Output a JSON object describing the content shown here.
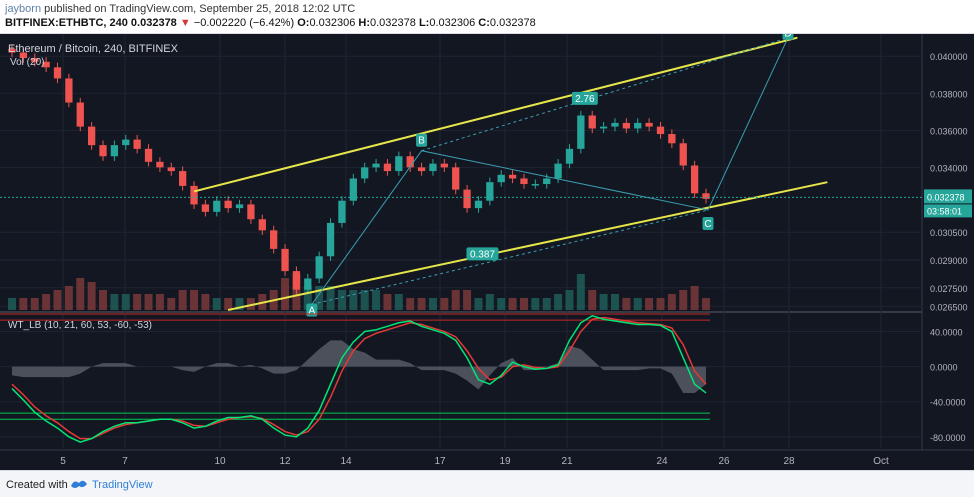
{
  "header": {
    "author": "jayborn",
    "published_text": "published on TradingView.com, September 25, 2018 12:02 UTC",
    "symbol_line": "BITFINEX:ETHBTC, 240",
    "last": "0.032378",
    "arrow": "▼",
    "change": "−0.002220 (−6.42%)",
    "ohlc": {
      "o_label": "O:",
      "o": "0.032306",
      "h_label": "H:",
      "h": "0.032378",
      "l_label": "L:",
      "l": "0.032306",
      "c_label": "C:",
      "c": "0.032378"
    }
  },
  "footer": {
    "created_with": "Created with",
    "brand": "TradingView"
  },
  "chart_data": [
    {
      "type": "candlestick",
      "title": "Ethereum / Bitcoin, 240, BITFINEX",
      "volume_label": "Vol (20)",
      "x_ticks": [
        "5",
        "7",
        "10",
        "12",
        "14",
        "17",
        "19",
        "21",
        "24",
        "26",
        "28",
        "Oct"
      ],
      "y_ticks": [
        "0.040000",
        "0.038000",
        "0.036000",
        "0.034000",
        "0.032378",
        "0.030500",
        "0.029000",
        "0.027500",
        "0.026500"
      ],
      "ylim": [
        0.0263,
        0.0412
      ],
      "last_price": "0.032378",
      "countdown": "03:58:01",
      "series": [
        {
          "name": "price",
          "values": [
            0.0402,
            0.0399,
            0.0397,
            0.0394,
            0.0388,
            0.0375,
            0.0362,
            0.0352,
            0.0346,
            0.0352,
            0.0355,
            0.035,
            0.0343,
            0.034,
            0.0338,
            0.033,
            0.032,
            0.0316,
            0.0322,
            0.0318,
            0.032,
            0.0312,
            0.0306,
            0.0296,
            0.0284,
            0.0274,
            0.028,
            0.0292,
            0.031,
            0.0322,
            0.0334,
            0.034,
            0.0342,
            0.0338,
            0.0346,
            0.034,
            0.0338,
            0.0342,
            0.034,
            0.0328,
            0.0318,
            0.0322,
            0.0332,
            0.0336,
            0.0334,
            0.0331,
            0.0331,
            0.0334,
            0.0342,
            0.035,
            0.0368,
            0.0361,
            0.0362,
            0.0364,
            0.0361,
            0.0364,
            0.0362,
            0.0358,
            0.0353,
            0.0341,
            0.0326,
            0.0323
          ]
        },
        {
          "name": "volume",
          "values": [
            0.3,
            0.3,
            0.3,
            0.4,
            0.5,
            0.6,
            0.8,
            0.7,
            0.5,
            0.4,
            0.4,
            0.4,
            0.4,
            0.4,
            0.3,
            0.5,
            0.5,
            0.4,
            0.3,
            0.3,
            0.3,
            0.3,
            0.4,
            0.5,
            0.8,
            0.9,
            0.6,
            0.6,
            0.6,
            0.5,
            0.5,
            0.5,
            0.5,
            0.4,
            0.4,
            0.3,
            0.3,
            0.3,
            0.3,
            0.5,
            0.5,
            0.3,
            0.4,
            0.3,
            0.3,
            0.3,
            0.3,
            0.3,
            0.4,
            0.5,
            0.9,
            0.5,
            0.4,
            0.4,
            0.3,
            0.3,
            0.3,
            0.3,
            0.4,
            0.5,
            0.6,
            0.3
          ]
        }
      ],
      "annotations": [
        {
          "label": "A",
          "price": 0.0266
        },
        {
          "label": "B",
          "price": 0.0349
        },
        {
          "label": "C",
          "price": 0.0317
        },
        {
          "label": "D",
          "price": 0.041
        },
        {
          "label": "2.76",
          "price": 0.0377
        },
        {
          "label": "0.387",
          "price": 0.0293
        }
      ],
      "colors": {
        "up": "#26a69a",
        "down": "#ef5350",
        "channel": "#e6e64a",
        "abcd": "#3a9eb0",
        "label_bg": "#26a69a"
      }
    },
    {
      "type": "line",
      "title": "WT_LB (10, 21, 60, 53, -60, -53)",
      "y_ticks": [
        "40.0000",
        "0.0000",
        "-40.0000",
        "-80.0000"
      ],
      "ylim": [
        -95,
        60
      ],
      "overbought": [
        60,
        53
      ],
      "oversold": [
        -60,
        -53
      ],
      "series": [
        {
          "name": "wt1",
          "values": [
            -25,
            -38,
            -52,
            -62,
            -70,
            -80,
            -86,
            -82,
            -74,
            -68,
            -64,
            -64,
            -62,
            -60,
            -60,
            -64,
            -70,
            -68,
            -62,
            -58,
            -58,
            -56,
            -60,
            -70,
            -78,
            -80,
            -70,
            -50,
            -20,
            10,
            28,
            40,
            42,
            46,
            50,
            52,
            46,
            42,
            38,
            30,
            10,
            -15,
            -20,
            -10,
            5,
            0,
            -3,
            -2,
            2,
            30,
            50,
            58,
            54,
            52,
            50,
            48,
            48,
            47,
            40,
            10,
            -20,
            -30
          ]
        },
        {
          "name": "wt2",
          "values": [
            -20,
            -32,
            -46,
            -56,
            -64,
            -74,
            -82,
            -82,
            -76,
            -70,
            -66,
            -64,
            -62,
            -60,
            -60,
            -62,
            -67,
            -68,
            -64,
            -60,
            -58,
            -57,
            -59,
            -66,
            -74,
            -78,
            -74,
            -60,
            -35,
            -5,
            18,
            32,
            38,
            42,
            46,
            50,
            48,
            44,
            40,
            34,
            18,
            -2,
            -15,
            -12,
            0,
            2,
            -1,
            -2,
            0,
            18,
            40,
            54,
            56,
            54,
            52,
            50,
            49,
            48,
            44,
            25,
            -5,
            -20
          ]
        }
      ],
      "colors": {
        "wt1": "#00e676",
        "wt2": "#e53935",
        "ob": "#c62828",
        "os": "#00c853",
        "hist": "#5a5f6a"
      }
    }
  ]
}
